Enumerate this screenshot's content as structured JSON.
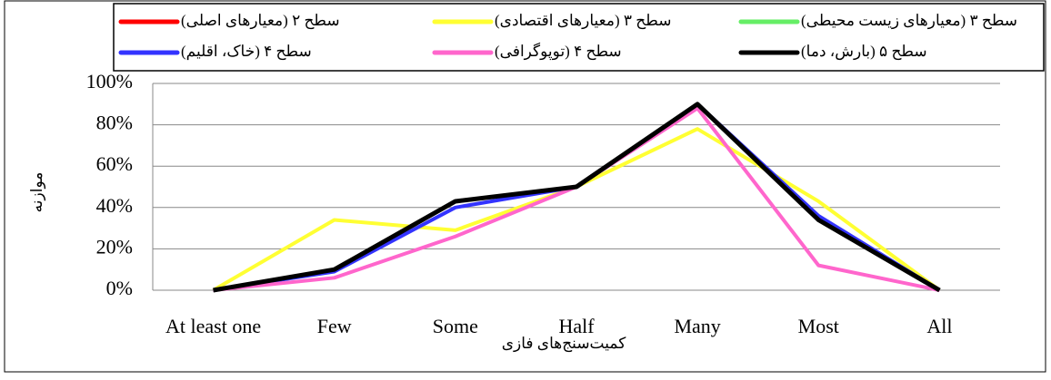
{
  "chart_data": {
    "type": "line",
    "x_label": "کمیت‌سنج‌های فازی",
    "y_label": "موازنه",
    "categories": [
      "At least one",
      "Few",
      "Some",
      "Half",
      "Many",
      "Most",
      "All"
    ],
    "series": [
      {
        "name": "سطح ۲ (معیارهای اصلی)",
        "color": "#ff0000",
        "values": [
          0,
          10,
          43,
          50,
          90,
          34,
          0
        ]
      },
      {
        "name": "سطح ۳ (معیارهای اقتصادی)",
        "color": "#ffff33",
        "values": [
          0,
          34,
          29,
          50,
          78,
          43,
          0
        ]
      },
      {
        "name": "سطح ۳ (معیارهای زیست محیطی)",
        "color": "#66ee66",
        "values": [
          0,
          10,
          43,
          50,
          90,
          34,
          0
        ]
      },
      {
        "name": "سطح ۴ (خاک، اقلیم)",
        "color": "#3333ff",
        "values": [
          0,
          9,
          40,
          50,
          90,
          36,
          0
        ]
      },
      {
        "name": "سطح ۴ (توپوگرافی)",
        "color": "#ff66cc",
        "values": [
          0,
          6,
          26,
          50,
          88,
          12,
          0
        ]
      },
      {
        "name": "سطح ۵ (بارش، دما)",
        "color": "#000000",
        "values": [
          0,
          10,
          43,
          50,
          90,
          34,
          0
        ]
      }
    ],
    "ylim": [
      0,
      100
    ],
    "yticks": [
      {
        "value": 0,
        "label": "0%"
      },
      {
        "value": 20,
        "label": "20%"
      },
      {
        "value": 40,
        "label": "40%"
      },
      {
        "value": 60,
        "label": "60%"
      },
      {
        "value": 80,
        "label": "80%"
      },
      {
        "value": 100,
        "label": "100%"
      }
    ],
    "grid": true,
    "legend": "top"
  }
}
